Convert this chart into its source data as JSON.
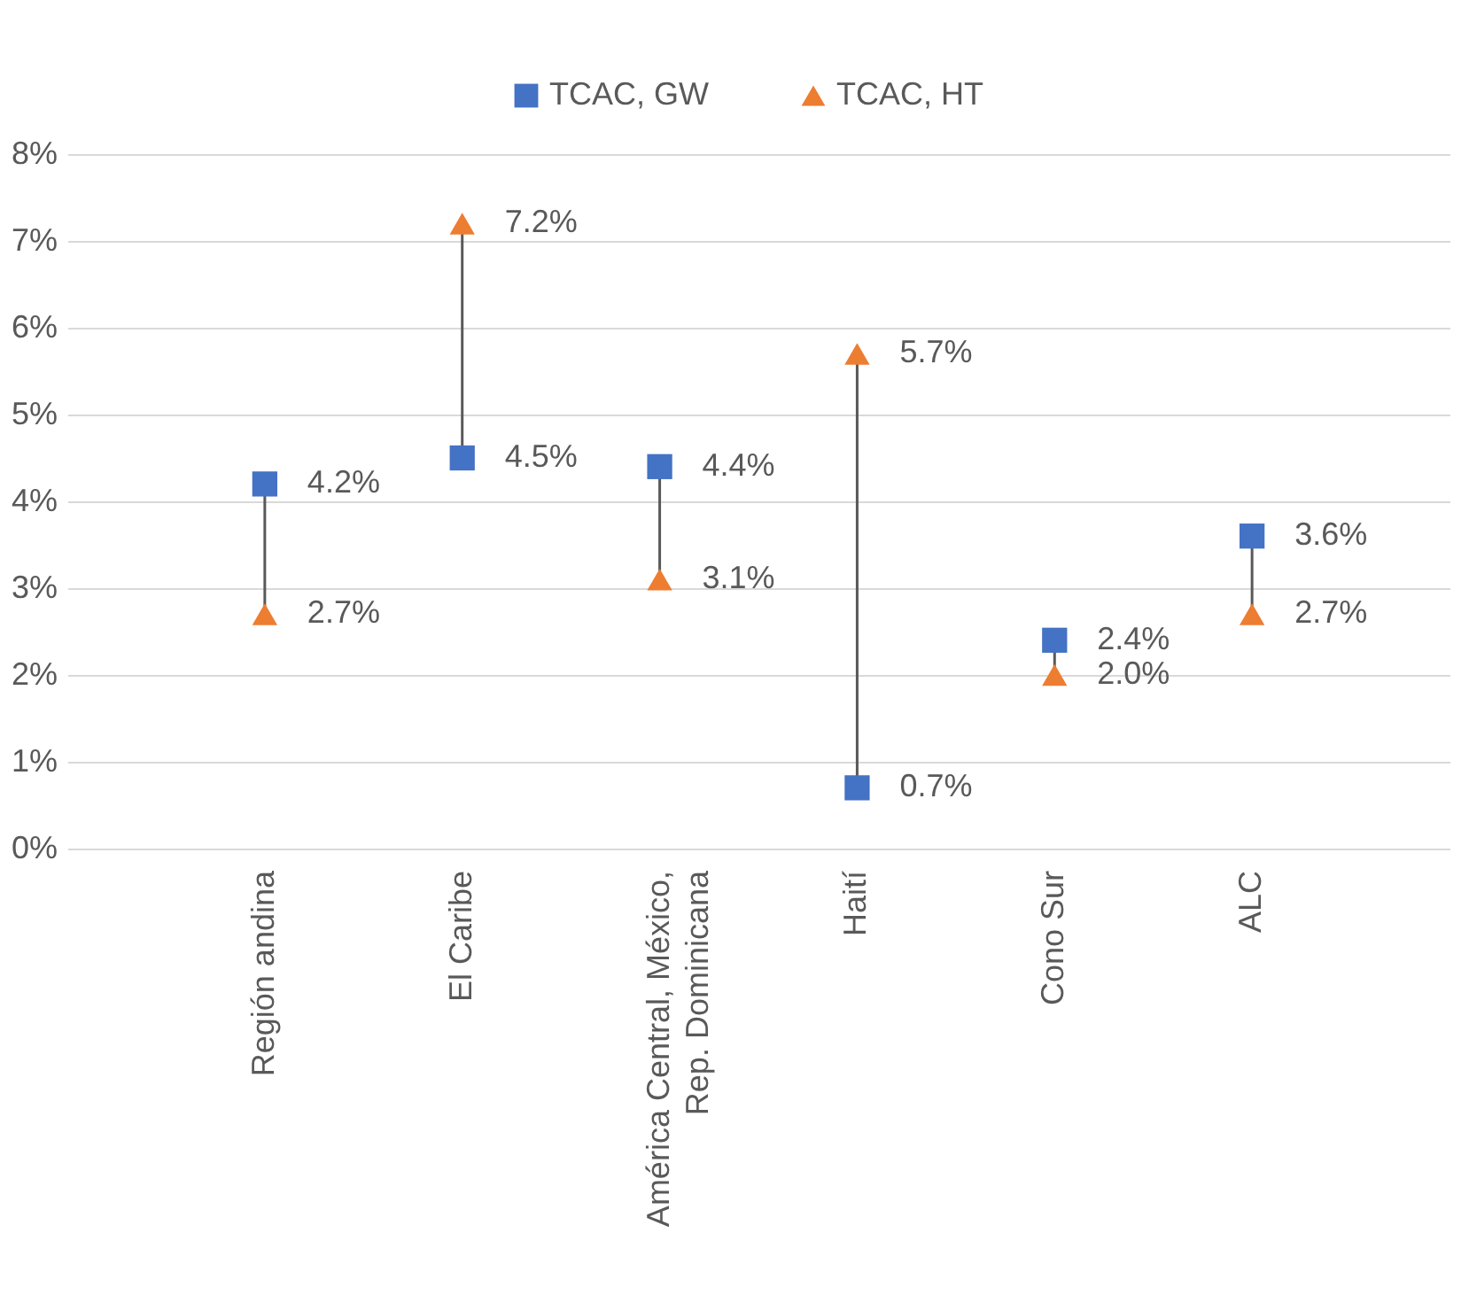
{
  "chart_data": {
    "type": "scatter",
    "categories": [
      "Región andina",
      "El Caribe",
      "América Central, México,\nRep. Dominicana",
      "Haití",
      "Cono Sur",
      "ALC"
    ],
    "series": [
      {
        "name": "TCAC, GW",
        "color": "#4472c4",
        "marker": "square",
        "values": [
          4.2,
          4.5,
          4.4,
          0.7,
          2.4,
          3.6
        ],
        "value_labels": [
          "4.2%",
          "4.5%",
          "4.4%",
          "0.7%",
          "2.4%",
          "3.6%"
        ]
      },
      {
        "name": "TCAC, HT",
        "color": "#ed7d31",
        "marker": "triangle",
        "values": [
          2.7,
          7.2,
          3.1,
          5.7,
          2.0,
          2.7
        ],
        "value_labels": [
          "2.7%",
          "7.2%",
          "3.1%",
          "5.7%",
          "2.0%",
          "2.7%"
        ]
      }
    ],
    "ylim": [
      0,
      8
    ],
    "yticks": [
      {
        "value": 0,
        "label": "0%"
      },
      {
        "value": 1,
        "label": "1%"
      },
      {
        "value": 2,
        "label": "2%"
      },
      {
        "value": 3,
        "label": "3%"
      },
      {
        "value": 4,
        "label": "4%"
      },
      {
        "value": 5,
        "label": "5%"
      },
      {
        "value": 6,
        "label": "6%"
      },
      {
        "value": 7,
        "label": "7%"
      },
      {
        "value": 8,
        "label": "8%"
      }
    ],
    "grid": "y",
    "legend": "top"
  }
}
